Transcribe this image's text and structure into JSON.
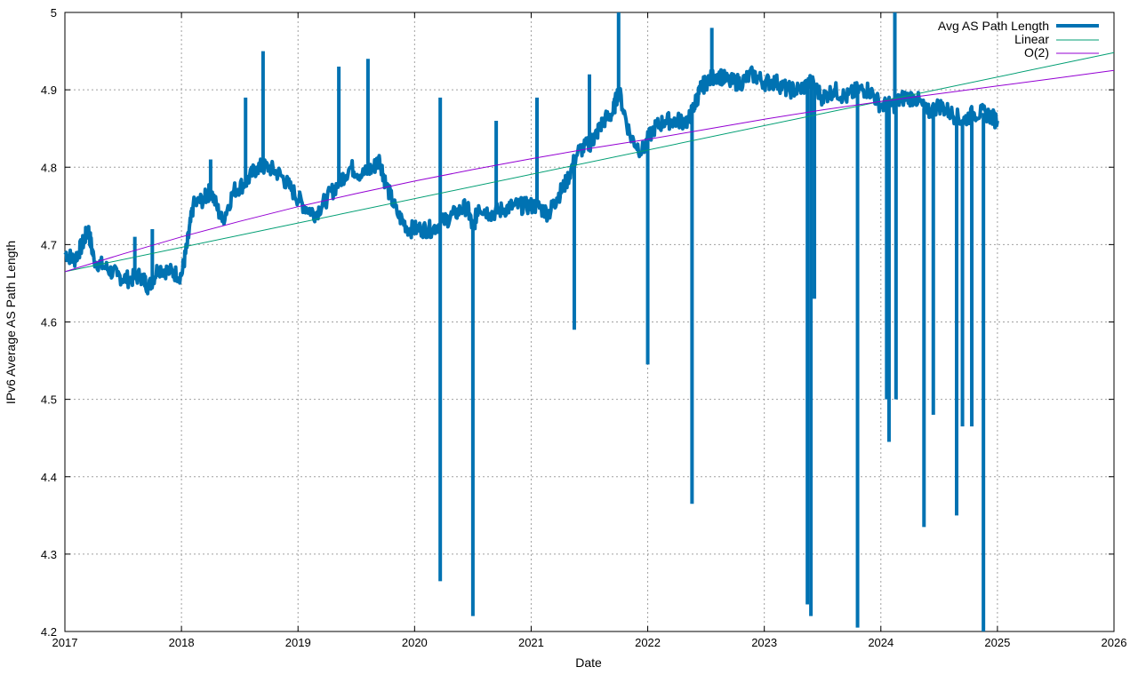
{
  "chart_data": {
    "type": "line",
    "title": "",
    "xlabel": "Date",
    "ylabel": "IPv6 Average AS Path Length",
    "xlim": [
      2017,
      2026
    ],
    "ylim": [
      4.2,
      5.0
    ],
    "grid": true,
    "legend_position": "top-right",
    "x_ticks": [
      "2017",
      "2018",
      "2019",
      "2020",
      "2021",
      "2022",
      "2023",
      "2024",
      "2025",
      "2026"
    ],
    "y_ticks": [
      "4.2",
      "4.3",
      "4.4",
      "4.5",
      "4.6",
      "4.7",
      "4.8",
      "4.9",
      "5"
    ],
    "colors": {
      "avg": "#0072b2",
      "linear": "#009e73",
      "quad": "#9400d3"
    },
    "series": [
      {
        "name": "Avg AS Path Length",
        "x": [
          2017.0,
          2017.08,
          2017.15,
          2017.2,
          2017.25,
          2017.35,
          2017.45,
          2017.55,
          2017.65,
          2017.72,
          2017.8,
          2017.9,
          2018.0,
          2018.05,
          2018.1,
          2018.2,
          2018.25,
          2018.35,
          2018.45,
          2018.55,
          2018.65,
          2018.75,
          2018.85,
          2018.95,
          2019.05,
          2019.15,
          2019.25,
          2019.35,
          2019.45,
          2019.55,
          2019.65,
          2019.7,
          2019.75,
          2019.85,
          2019.95,
          2020.05,
          2020.15,
          2020.25,
          2020.35,
          2020.45,
          2020.5,
          2020.55,
          2020.65,
          2020.75,
          2020.85,
          2020.95,
          2021.05,
          2021.15,
          2021.22,
          2021.3,
          2021.4,
          2021.5,
          2021.55,
          2021.62,
          2021.7,
          2021.75,
          2021.85,
          2021.95,
          2022.05,
          2022.15,
          2022.25,
          2022.35,
          2022.4,
          2022.45,
          2022.5,
          2022.6,
          2022.7,
          2022.8,
          2022.9,
          2023.0,
          2023.1,
          2023.2,
          2023.3,
          2023.4,
          2023.5,
          2023.6,
          2023.7,
          2023.8,
          2023.9,
          2024.0,
          2024.1,
          2024.2,
          2024.3,
          2024.4,
          2024.5,
          2024.6,
          2024.7,
          2024.8,
          2024.9,
          2025.0
        ],
        "y": [
          4.69,
          4.68,
          4.7,
          4.72,
          4.68,
          4.67,
          4.66,
          4.655,
          4.66,
          4.645,
          4.67,
          4.665,
          4.66,
          4.7,
          4.75,
          4.76,
          4.77,
          4.73,
          4.77,
          4.78,
          4.8,
          4.8,
          4.79,
          4.77,
          4.75,
          4.74,
          4.76,
          4.78,
          4.8,
          4.79,
          4.8,
          4.81,
          4.78,
          4.74,
          4.72,
          4.72,
          4.72,
          4.73,
          4.74,
          4.75,
          4.72,
          4.75,
          4.74,
          4.745,
          4.75,
          4.75,
          4.75,
          4.74,
          4.76,
          4.78,
          4.82,
          4.83,
          4.84,
          4.86,
          4.87,
          4.9,
          4.84,
          4.82,
          4.85,
          4.86,
          4.86,
          4.86,
          4.88,
          4.9,
          4.91,
          4.92,
          4.91,
          4.91,
          4.92,
          4.91,
          4.91,
          4.9,
          4.9,
          4.91,
          4.89,
          4.9,
          4.89,
          4.9,
          4.9,
          4.88,
          4.88,
          4.89,
          4.89,
          4.87,
          4.88,
          4.87,
          4.86,
          4.87,
          4.87,
          4.86
        ],
        "spikes": [
          {
            "x": 2017.6,
            "y": 4.71
          },
          {
            "x": 2017.75,
            "y": 4.72
          },
          {
            "x": 2018.25,
            "y": 4.81
          },
          {
            "x": 2018.55,
            "y": 4.89
          },
          {
            "x": 2018.7,
            "y": 4.95
          },
          {
            "x": 2019.35,
            "y": 4.93
          },
          {
            "x": 2019.6,
            "y": 4.94
          },
          {
            "x": 2020.22,
            "y": 4.265
          },
          {
            "x": 2020.22,
            "y": 4.89
          },
          {
            "x": 2020.5,
            "y": 4.22
          },
          {
            "x": 2020.7,
            "y": 4.86
          },
          {
            "x": 2021.05,
            "y": 4.89
          },
          {
            "x": 2021.37,
            "y": 4.59
          },
          {
            "x": 2021.5,
            "y": 4.92
          },
          {
            "x": 2021.75,
            "y": 5.0
          },
          {
            "x": 2022.0,
            "y": 4.545
          },
          {
            "x": 2022.38,
            "y": 4.365
          },
          {
            "x": 2022.55,
            "y": 4.98
          },
          {
            "x": 2023.37,
            "y": 4.235
          },
          {
            "x": 2023.4,
            "y": 4.22
          },
          {
            "x": 2023.43,
            "y": 4.63
          },
          {
            "x": 2023.8,
            "y": 4.205
          },
          {
            "x": 2024.05,
            "y": 4.5
          },
          {
            "x": 2024.07,
            "y": 4.445
          },
          {
            "x": 2024.12,
            "y": 5.0
          },
          {
            "x": 2024.13,
            "y": 4.5
          },
          {
            "x": 2024.37,
            "y": 4.335
          },
          {
            "x": 2024.45,
            "y": 4.48
          },
          {
            "x": 2024.65,
            "y": 4.35
          },
          {
            "x": 2024.7,
            "y": 4.465
          },
          {
            "x": 2024.78,
            "y": 4.465
          },
          {
            "x": 2024.88,
            "y": 4.2
          }
        ]
      },
      {
        "name": "Linear",
        "x": [
          2017,
          2026
        ],
        "y": [
          4.665,
          4.948
        ]
      },
      {
        "name": "O(2)",
        "x": [
          2017,
          2017.5,
          2018,
          2018.5,
          2019,
          2019.5,
          2020,
          2020.5,
          2021,
          2021.5,
          2022,
          2022.5,
          2023,
          2023.5,
          2024,
          2024.5,
          2025,
          2025.5,
          2026
        ],
        "y": [
          4.665,
          4.688,
          4.71,
          4.73,
          4.749,
          4.766,
          4.782,
          4.797,
          4.811,
          4.824,
          4.836,
          4.849,
          4.862,
          4.874,
          4.885,
          4.895,
          4.905,
          4.915,
          4.925
        ]
      }
    ]
  }
}
